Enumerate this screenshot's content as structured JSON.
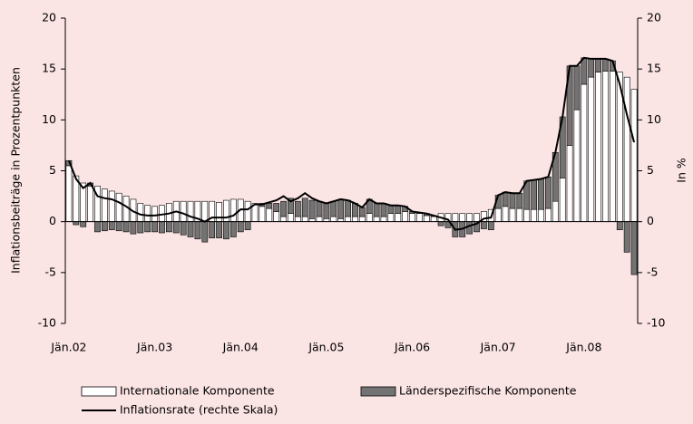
{
  "chart_data": {
    "type": "bar_line",
    "y_label": "Inflationsbeiträge in Prozentpunkten",
    "y2_label": "In %",
    "categories": [
      "Jän.02",
      null,
      null,
      null,
      null,
      null,
      null,
      null,
      null,
      null,
      null,
      null,
      "Jän.03",
      null,
      null,
      null,
      null,
      null,
      null,
      null,
      null,
      null,
      null,
      null,
      "Jän.04",
      null,
      null,
      null,
      null,
      null,
      null,
      null,
      null,
      null,
      null,
      null,
      "Jän.05",
      null,
      null,
      null,
      null,
      null,
      null,
      null,
      null,
      null,
      null,
      null,
      "Jän.06",
      null,
      null,
      null,
      null,
      null,
      null,
      null,
      null,
      null,
      null,
      null,
      "Jän.07",
      null,
      null,
      null,
      null,
      null,
      null,
      null,
      null,
      null,
      null,
      null,
      "Jän.08",
      null,
      null,
      null,
      null,
      null,
      null,
      null
    ],
    "series": [
      {
        "name": "Internationale Komponente",
        "color": "#ffffff",
        "kind": "bar",
        "values": [
          5.5,
          4.5,
          3.8,
          3.5,
          3.5,
          3.2,
          3.0,
          2.8,
          2.5,
          2.2,
          1.8,
          1.6,
          1.5,
          1.6,
          1.8,
          2.0,
          2.0,
          2.0,
          2.0,
          2.0,
          2.0,
          1.9,
          2.1,
          2.2,
          2.2,
          2.0,
          1.8,
          1.5,
          1.3,
          1.0,
          0.5,
          0.8,
          0.5,
          0.5,
          0.3,
          0.5,
          0.3,
          0.5,
          0.3,
          0.5,
          0.5,
          0.5,
          0.8,
          0.5,
          0.5,
          0.8,
          0.8,
          1.0,
          0.8,
          0.8,
          0.6,
          0.5,
          0.8,
          0.8,
          0.8,
          0.8,
          0.8,
          0.8,
          1.0,
          1.2,
          1.3,
          1.5,
          1.3,
          1.3,
          1.2,
          1.2,
          1.2,
          1.3,
          2.0,
          4.3,
          7.5,
          11.0,
          13.5,
          14.2,
          14.7,
          14.8,
          14.8,
          14.7,
          14.2,
          13.0
        ]
      },
      {
        "name": "Länderspezifische Komponente",
        "color": "#737373",
        "kind": "bar",
        "values": [
          0.5,
          -0.3,
          -0.5,
          0.3,
          -1.0,
          -0.9,
          -0.8,
          -0.9,
          -1.0,
          -1.2,
          -1.1,
          -1.0,
          -1.0,
          -1.1,
          -1.0,
          -1.1,
          -1.3,
          -1.5,
          -1.7,
          -2.0,
          -1.6,
          -1.6,
          -1.7,
          -1.5,
          -1.0,
          -0.8,
          0.0,
          0.3,
          0.5,
          0.8,
          1.5,
          1.5,
          1.5,
          1.8,
          1.8,
          1.5,
          1.5,
          1.5,
          1.9,
          1.6,
          1.3,
          0.9,
          1.4,
          1.3,
          1.3,
          0.8,
          0.8,
          0.5,
          0.2,
          0.1,
          0.2,
          0.1,
          -0.4,
          -0.6,
          -1.5,
          -1.5,
          -1.2,
          -1.0,
          -0.7,
          -0.8,
          1.3,
          1.4,
          1.5,
          1.5,
          2.8,
          2.9,
          3.0,
          3.1,
          4.8,
          6.0,
          7.8,
          4.3,
          2.6,
          1.8,
          1.3,
          1.2,
          1.0,
          -0.8,
          -3.0,
          -5.2
        ]
      },
      {
        "name": "Inflationsrate (rechte Skala)",
        "color": "#000000",
        "kind": "line",
        "axis": "y2",
        "values": [
          6.0,
          4.2,
          3.3,
          3.8,
          2.5,
          2.3,
          2.2,
          1.9,
          1.5,
          1.0,
          0.7,
          0.6,
          0.6,
          0.7,
          0.8,
          1.0,
          0.8,
          0.5,
          0.3,
          0.0,
          0.4,
          0.4,
          0.4,
          0.6,
          1.2,
          1.2,
          1.7,
          1.7,
          1.9,
          2.1,
          2.5,
          2.0,
          2.3,
          2.8,
          2.3,
          2.0,
          1.8,
          2.0,
          2.2,
          2.1,
          1.8,
          1.4,
          2.2,
          1.8,
          1.8,
          1.6,
          1.6,
          1.5,
          1.0,
          0.9,
          0.8,
          0.6,
          0.4,
          0.2,
          -0.8,
          -0.7,
          -0.4,
          -0.2,
          0.3,
          0.4,
          2.6,
          2.9,
          2.8,
          2.8,
          4.0,
          4.1,
          4.2,
          4.4,
          6.8,
          10.3,
          15.3,
          15.3,
          16.1,
          16.0,
          16.0,
          16.0,
          15.8,
          13.5,
          10.5,
          7.8
        ]
      }
    ],
    "ylim": [
      -10,
      20
    ],
    "yticks": [
      -10,
      -5,
      0,
      5,
      10,
      15,
      20
    ],
    "y2lim": [
      -10,
      20
    ],
    "y2ticks": [
      -10,
      -5,
      0,
      5,
      10,
      15,
      20
    ],
    "grid": false
  }
}
